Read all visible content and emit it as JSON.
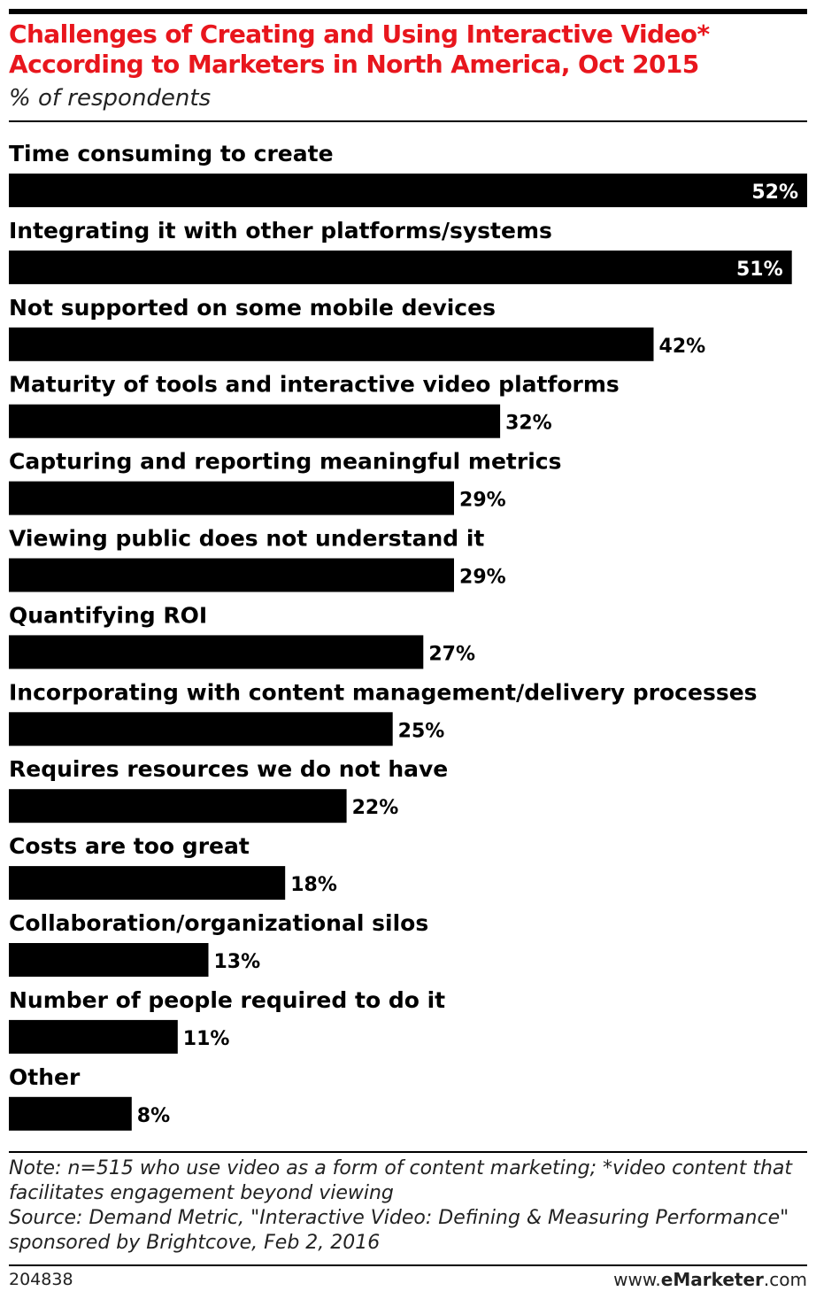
{
  "header": {
    "title": "Challenges of Creating and Using Interactive Video* According to Marketers in North America, Oct 2015",
    "subtitle": "% of respondents"
  },
  "chart_data": {
    "type": "bar",
    "orientation": "horizontal",
    "categories": [
      "Time consuming to create",
      "Integrating it with other platforms/systems",
      "Not supported on some mobile devices",
      "Maturity of tools and interactive video platforms",
      "Capturing and reporting meaningful metrics",
      "Viewing public does not understand it",
      "Quantifying ROI",
      "Incorporating with content management/delivery processes",
      "Requires resources we do not have",
      "Costs are too great",
      "Collaboration/organizational silos",
      "Number of people required to do it",
      "Other"
    ],
    "values": [
      52,
      51,
      42,
      32,
      29,
      29,
      27,
      25,
      22,
      18,
      13,
      11,
      8
    ],
    "value_suffix": "%",
    "bar_color": "#000000",
    "label_inside_color": "#ffffff",
    "label_outside_color": "#000000",
    "grid": false,
    "legend": "none"
  },
  "footer": {
    "note": "Note: n=515 who use video as a form of content marketing; *video content that facilitates engagement beyond viewing",
    "source": "Source: Demand Metric, \"Interactive Video: Defining & Measuring Performance\" sponsored by Brightcove, Feb 2, 2016",
    "chart_id": "204838",
    "brand_prefix": "www.",
    "brand_highlight": "eMarketer",
    "brand_suffix": ".com"
  }
}
